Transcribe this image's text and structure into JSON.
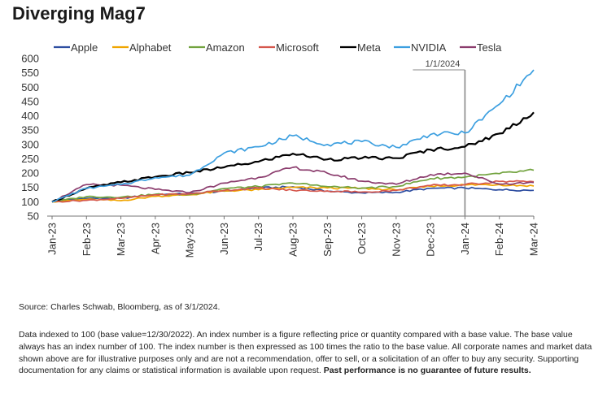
{
  "title": "Diverging Mag7",
  "source": "Source: Charles Schwab, Bloomberg, as of 3/1/2024.",
  "disclaimer": "Data indexed to 100 (base value=12/30/2022). An index number is a figure reflecting price or quantity compared with a base value. The base value always has an index number of 100. The index number is then expressed as 100 times the ratio to the base value. All corporate names and market data shown above are for illustrative purposes only and are not a recommendation, offer to sell, or a solicitation of an offer to buy any security. Supporting documentation for any claims or statistical information is available upon request. ",
  "disclaimer_bold": "Past performance is no guarantee of future results.",
  "chart_data": {
    "type": "line",
    "title": "Diverging Mag7",
    "xlabel": "",
    "ylabel": "",
    "ylim": [
      50,
      600
    ],
    "yticks": [
      50,
      100,
      150,
      200,
      250,
      300,
      350,
      400,
      450,
      500,
      550,
      600
    ],
    "xticks": [
      "Jan-23",
      "Feb-23",
      "Mar-23",
      "Apr-23",
      "May-23",
      "Jun-23",
      "Jul-23",
      "Aug-23",
      "Sep-23",
      "Oct-23",
      "Nov-23",
      "Dec-23",
      "Jan-24",
      "Feb-24",
      "Mar-24"
    ],
    "grid": false,
    "legend_position": "top",
    "annotation": {
      "label": "1/1/2024",
      "at": "Jan-24"
    },
    "x": [
      "Jan-23",
      "Feb-23",
      "Mar-23",
      "Apr-23",
      "May-23",
      "Jun-23",
      "Jul-23",
      "Aug-23",
      "Sep-23",
      "Oct-23",
      "Nov-23",
      "Dec-23",
      "Jan-24",
      "Feb-24",
      "Mar-24"
    ],
    "series": [
      {
        "name": "Apple",
        "color": "#2e4ea1",
        "values": [
          100,
          112,
          112,
          126,
          128,
          137,
          148,
          152,
          137,
          131,
          133,
          147,
          148,
          142,
          140
        ]
      },
      {
        "name": "Alphabet",
        "color": "#f0a500",
        "values": [
          100,
          108,
          104,
          119,
          124,
          138,
          142,
          150,
          148,
          147,
          141,
          154,
          159,
          160,
          155
        ]
      },
      {
        "name": "Amazon",
        "color": "#72a33f",
        "values": [
          100,
          118,
          116,
          126,
          125,
          146,
          153,
          165,
          153,
          148,
          153,
          181,
          186,
          198,
          210
        ]
      },
      {
        "name": "Microsoft",
        "color": "#d5574d",
        "values": [
          100,
          105,
          112,
          124,
          128,
          140,
          148,
          140,
          138,
          134,
          140,
          157,
          160,
          171,
          170
        ]
      },
      {
        "name": "Meta",
        "color": "#000000",
        "values": [
          100,
          147,
          168,
          187,
          202,
          220,
          240,
          268,
          248,
          252,
          252,
          282,
          292,
          338,
          412
        ]
      },
      {
        "name": "NVIDIA",
        "color": "#3c9fe0",
        "values": [
          100,
          147,
          160,
          184,
          193,
          270,
          292,
          330,
          300,
          310,
          290,
          335,
          340,
          440,
          560
        ]
      },
      {
        "name": "Tesla",
        "color": "#8b3c6d",
        "values": [
          100,
          160,
          158,
          143,
          132,
          165,
          185,
          220,
          200,
          172,
          161,
          195,
          200,
          162,
          167
        ]
      }
    ]
  }
}
